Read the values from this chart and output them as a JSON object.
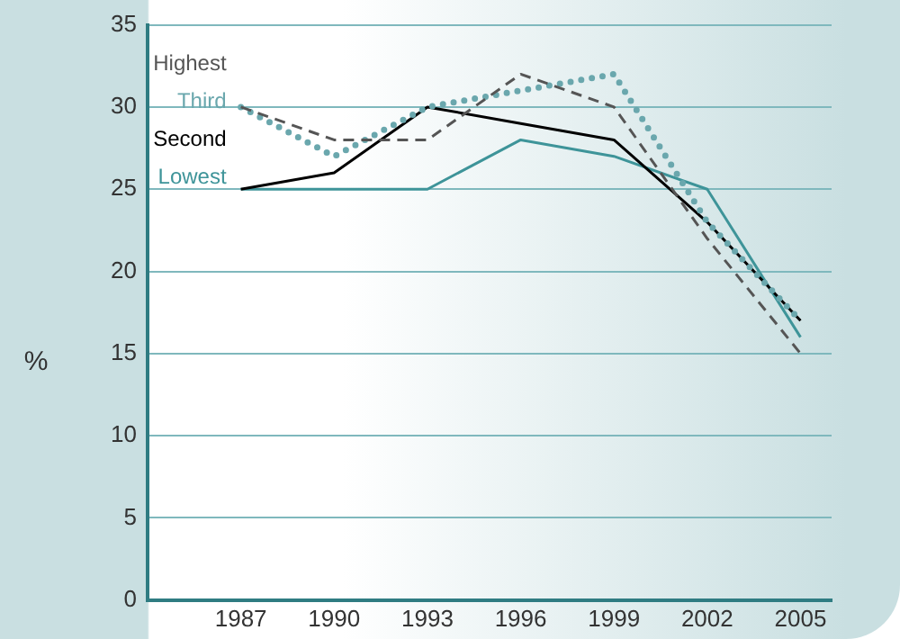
{
  "chart_data": {
    "type": "line",
    "ylabel": "%",
    "x": [
      1987,
      1990,
      1993,
      1996,
      1999,
      2002,
      2005
    ],
    "xlim": [
      1984,
      2006
    ],
    "xticks": [
      1987,
      1990,
      1993,
      1996,
      1999,
      2002,
      2005
    ],
    "ylim": [
      0,
      35
    ],
    "yticks": [
      0,
      5,
      10,
      15,
      20,
      25,
      30,
      35
    ],
    "grid": "y",
    "legend": "top left",
    "marker": "none",
    "series": [
      {
        "name": "Highest",
        "color": "#555555",
        "line_style": "dashed",
        "values": [
          30,
          28,
          28,
          32,
          30,
          22,
          15
        ]
      },
      {
        "name": "Third",
        "color": "#6aa7ad",
        "line_style": "dotted",
        "values": [
          30,
          27,
          30,
          31,
          32,
          23,
          17
        ]
      },
      {
        "name": "Second",
        "color": "#000000",
        "line_style": "solid",
        "values": [
          25,
          26,
          30,
          29,
          28,
          23,
          17
        ]
      },
      {
        "name": "Lowest",
        "color": "#3e9499",
        "line_style": "solid",
        "values": [
          25,
          25,
          25,
          28,
          27,
          25,
          16
        ]
      }
    ]
  }
}
